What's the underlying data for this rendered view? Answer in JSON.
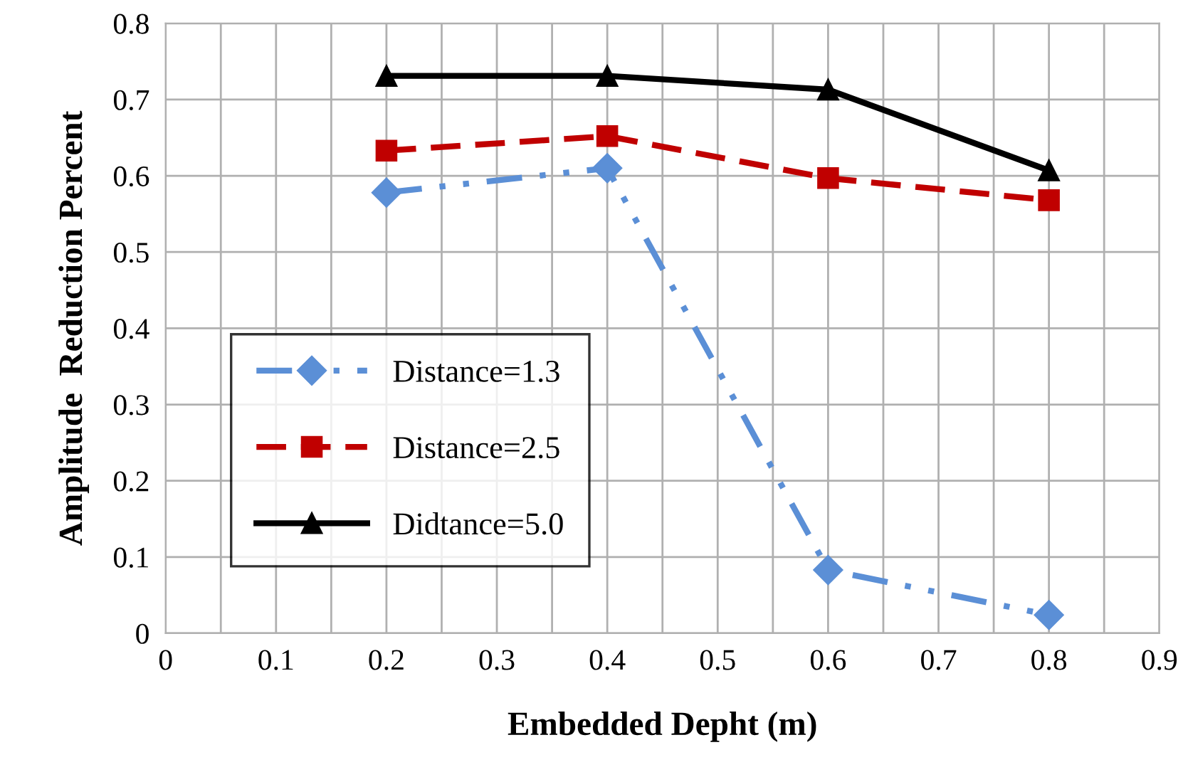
{
  "chart_data": {
    "type": "line",
    "xlabel": "Embedded Depht (m)",
    "ylabel": "Amplitude  Reduction Percent",
    "xlim": [
      0,
      0.9
    ],
    "ylim": [
      0,
      0.8
    ],
    "xticks": [
      0,
      {
        "value": 0.05,
        "label": null
      },
      0.1,
      {
        "value": 0.15,
        "label": null
      },
      0.2,
      {
        "value": 0.25,
        "label": null
      },
      0.3,
      {
        "value": 0.35,
        "label": null
      },
      0.4,
      {
        "value": 0.45,
        "label": null
      },
      0.5,
      {
        "value": 0.55,
        "label": null
      },
      0.6,
      {
        "value": 0.65,
        "label": null
      },
      0.7,
      {
        "value": 0.75,
        "label": null
      },
      0.8,
      {
        "value": 0.85,
        "label": null
      },
      0.9
    ],
    "yticks": [
      0,
      0.1,
      0.2,
      0.3,
      0.4,
      0.5,
      0.6,
      0.7,
      0.8
    ],
    "grid": true,
    "legend": "left",
    "x": [
      0.2,
      0.4,
      0.6,
      0.8
    ],
    "series": [
      {
        "name": "Distance=1.3",
        "color": "#5b8fd6",
        "values": [
          0.578,
          0.61,
          0.083,
          0.024
        ],
        "marker": "diamond",
        "line_style": "dashdot"
      },
      {
        "name": "Distance=2.5",
        "color": "#c00000",
        "values": [
          0.633,
          0.652,
          0.597,
          0.568
        ],
        "marker": "square",
        "line_style": "dashed"
      },
      {
        "name": "Didtance=5.0",
        "color": "#000000",
        "values": [
          0.731,
          0.731,
          0.713,
          0.607
        ],
        "marker": "triangle",
        "line_style": "solid"
      }
    ]
  }
}
